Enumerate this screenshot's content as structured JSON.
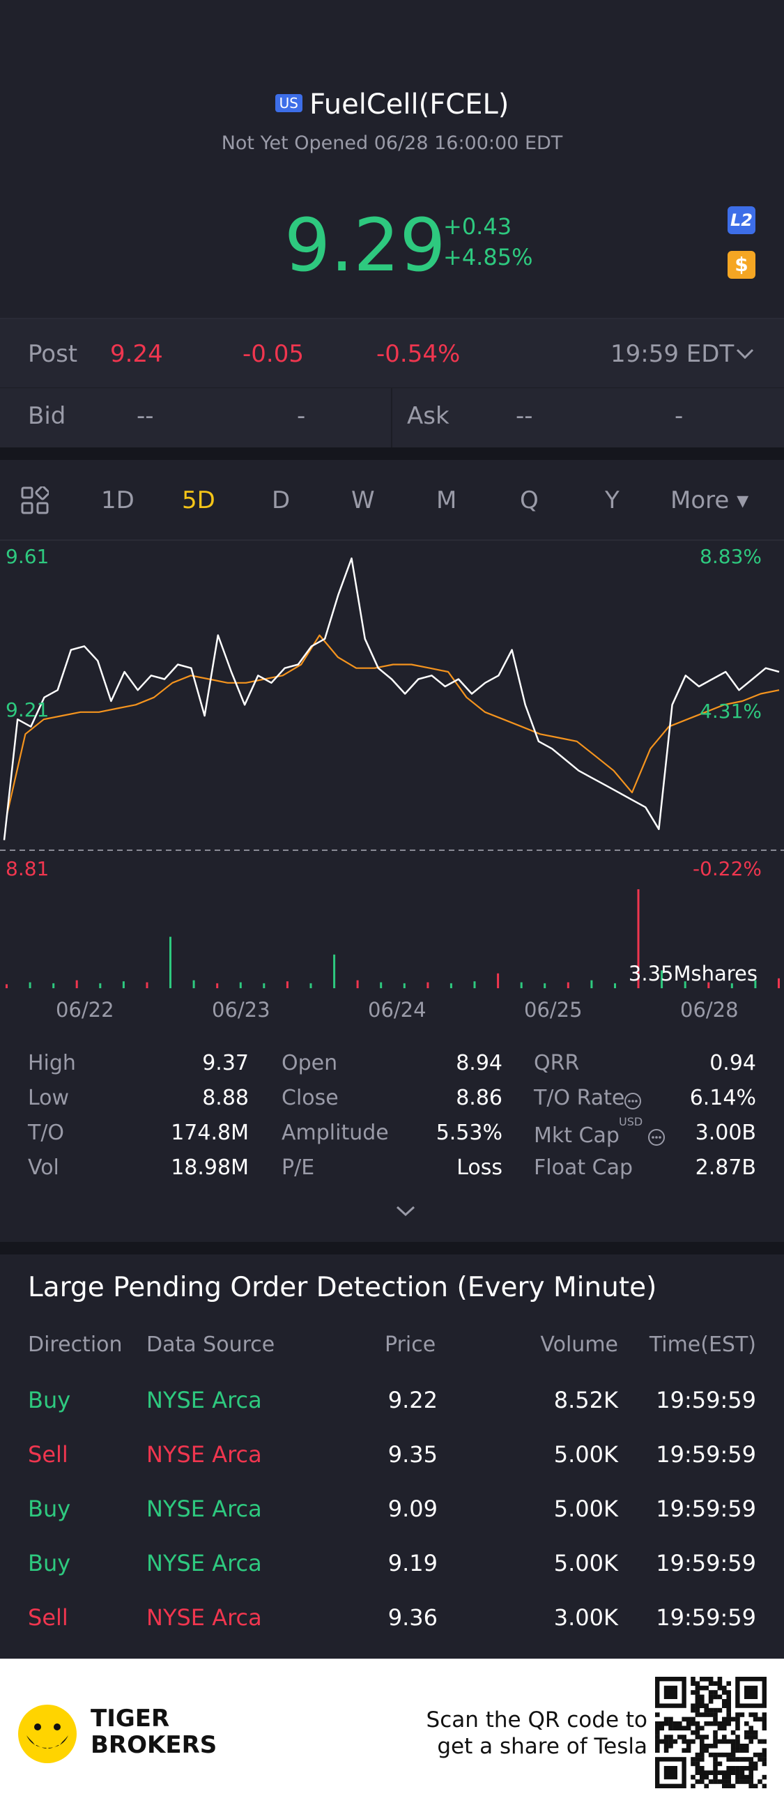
{
  "header": {
    "market_badge": "US",
    "title": "FuelCell(FCEL)",
    "status": "Not Yet Opened 06/28 16:00:00 EDT",
    "price": "9.29",
    "change_abs": "+0.43",
    "change_pct": "+4.85%",
    "l2_badge": "L2",
    "dollar_badge": "$"
  },
  "quote": {
    "post_label": "Post",
    "post_price": "9.24",
    "post_change": "-0.05",
    "post_pct": "-0.54%",
    "post_time": "19:59 EDT",
    "bid_label": "Bid",
    "bid_price": "--",
    "bid_size": "-",
    "ask_label": "Ask",
    "ask_price": "--",
    "ask_size": "-"
  },
  "tabs": {
    "items": [
      "1D",
      "5D",
      "D",
      "W",
      "M",
      "Q",
      "Y"
    ],
    "more": "More ▾",
    "active": "5D"
  },
  "chart_data": {
    "type": "line",
    "period": "5D",
    "y_left_labels": [
      "9.61",
      "9.21",
      "8.81"
    ],
    "y_right_labels": [
      "8.83%",
      "4.31%",
      "-0.22%"
    ],
    "ylim": [
      8.81,
      9.61
    ],
    "x_labels": [
      "06/22",
      "06/23",
      "06/24",
      "06/25",
      "06/28"
    ],
    "volume_label": "3.35Mshares",
    "series": [
      {
        "color": "#ffffff",
        "values": [
          8.83,
          9.16,
          9.14,
          9.22,
          9.24,
          9.35,
          9.36,
          9.32,
          9.21,
          9.29,
          9.24,
          9.28,
          9.27,
          9.31,
          9.3,
          9.17,
          9.39,
          9.29,
          9.2,
          9.28,
          9.26,
          9.3,
          9.31,
          9.36,
          9.38,
          9.5,
          9.6,
          9.38,
          9.3,
          9.27,
          9.23,
          9.27,
          9.28,
          9.25,
          9.27,
          9.23,
          9.26,
          9.28,
          9.35,
          9.2,
          9.1,
          9.08,
          9.05,
          9.02,
          9.0,
          8.98,
          8.96,
          8.94,
          8.92,
          8.86,
          9.2,
          9.28,
          9.25,
          9.27,
          9.29,
          9.24,
          9.27,
          9.3,
          9.29
        ]
      },
      {
        "color": "#f5941e",
        "values": [
          8.9,
          9.12,
          9.16,
          9.17,
          9.18,
          9.18,
          9.19,
          9.2,
          9.22,
          9.26,
          9.28,
          9.27,
          9.26,
          9.26,
          9.27,
          9.28,
          9.31,
          9.39,
          9.33,
          9.3,
          9.3,
          9.31,
          9.31,
          9.3,
          9.29,
          9.22,
          9.18,
          9.16,
          9.14,
          9.12,
          9.11,
          9.1,
          9.06,
          9.02,
          8.96,
          9.08,
          9.14,
          9.16,
          9.18,
          9.2,
          9.21,
          9.23,
          9.24
        ]
      }
    ],
    "volume_bars": [
      0.04,
      0.06,
      0.05,
      0.08,
      0.05,
      0.07,
      0.06,
      0.52,
      0.08,
      0.05,
      0.06,
      0.05,
      0.07,
      0.05,
      0.34,
      0.08,
      0.06,
      0.05,
      0.06,
      0.05,
      0.07,
      0.15,
      0.06,
      0.05,
      0.06,
      0.08,
      0.05,
      1.0,
      0.18,
      0.07,
      0.06,
      0.05,
      0.08,
      0.1
    ]
  },
  "stats": [
    {
      "label": "High",
      "value": "9.37"
    },
    {
      "label": "Low",
      "value": "8.88"
    },
    {
      "label": "T/O",
      "value": "174.8M"
    },
    {
      "label": "Vol",
      "value": "18.98M"
    },
    {
      "label": "Open",
      "value": "8.94"
    },
    {
      "label": "Close",
      "value": "8.86"
    },
    {
      "label": "Amplitude",
      "value": "5.53%"
    },
    {
      "label": "P/E",
      "value": "Loss"
    },
    {
      "label": "QRR",
      "value": "0.94"
    },
    {
      "label": "T/O Rate",
      "value": "6.14%"
    },
    {
      "label": "Mkt Cap",
      "value": "3.00B",
      "sup": "USD"
    },
    {
      "label": "Float Cap",
      "value": "2.87B"
    }
  ],
  "orders": {
    "title": "Large Pending Order Detection (Every Minute)",
    "headers": [
      "Direction",
      "Data Source",
      "Price",
      "Volume",
      "Time(EST)"
    ],
    "rows": [
      {
        "direction": "Buy",
        "source": "NYSE Arca",
        "price": "9.22",
        "volume": "8.52K",
        "time": "19:59:59",
        "side": "buy"
      },
      {
        "direction": "Sell",
        "source": "NYSE Arca",
        "price": "9.35",
        "volume": "5.00K",
        "time": "19:59:59",
        "side": "sell"
      },
      {
        "direction": "Buy",
        "source": "NYSE Arca",
        "price": "9.09",
        "volume": "5.00K",
        "time": "19:59:59",
        "side": "buy"
      },
      {
        "direction": "Buy",
        "source": "NYSE Arca",
        "price": "9.19",
        "volume": "5.00K",
        "time": "19:59:59",
        "side": "buy"
      },
      {
        "direction": "Sell",
        "source": "NYSE Arca",
        "price": "9.36",
        "volume": "3.00K",
        "time": "19:59:59",
        "side": "sell"
      }
    ]
  },
  "footer": {
    "brand_line1": "TIGER",
    "brand_line2": "BROKERS",
    "scan_line1": "Scan the QR code to",
    "scan_line2": "get a share of Tesla"
  },
  "colors": {
    "up": "#2ec97f",
    "down": "#f0364f",
    "accent": "#f5c518",
    "background": "#20212b"
  }
}
